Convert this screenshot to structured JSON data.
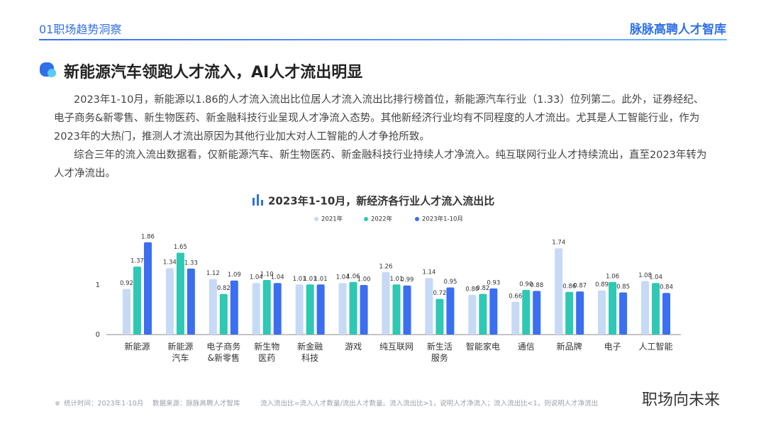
{
  "header": {
    "left": "01职场趋势洞察",
    "right": "脉脉高聘人才智库"
  },
  "section_title": "新能源汽车领跑人才流入，AI人才流出明显",
  "paragraphs": [
    "2023年1-10月，新能源以1.86的人才流入流出比位居人才流入流出比排行榜首位，新能源汽车行业（1.33）位列第二。此外，证券经纪、 电子商务&新零售、新生物医药、新金融科技行业呈现人才净流入态势。其他新经济行业均有不同程度的人才流出。尤其是人工智能行业，作为2023年的大热门，推测人才流出原因为其他行业加大对人工智能的人才争抢所致。",
    "综合三年的流入流出数据看，仅新能源汽车、新生物医药、新金融科技行业持续人才净流入。纯互联网行业人才持续流出，直至2023年转为人才净流出。"
  ],
  "chart_data": {
    "type": "bar",
    "title": "2023年1-10月，新经济各行业人才流入流出比",
    "categories": [
      "新能源",
      "新能源\n汽车",
      "电子商务\n&新零售",
      "新生物\n医药",
      "新金融\n科技",
      "游戏",
      "纯互联网",
      "新生活\n服务",
      "智能家电",
      "通信",
      "新品牌",
      "电子",
      "人工智能"
    ],
    "series": [
      {
        "name": "2021年",
        "color": "#c6daf6",
        "values": [
          0.92,
          1.34,
          1.12,
          1.04,
          1.01,
          1.04,
          1.26,
          1.14,
          0.8,
          0.66,
          1.74,
          0.89,
          1.08
        ],
        "value_labels": [
          "0.92",
          "1.34",
          "1.12",
          "1.04",
          "1.01",
          "1.04",
          "1.26",
          "1.14",
          "0.80",
          "0.66",
          "1.74",
          "0.89",
          "1.08"
        ]
      },
      {
        "name": "2022年",
        "color": "#2ec8b4",
        "values": [
          1.37,
          1.65,
          0.82,
          1.1,
          1.01,
          1.06,
          1.01,
          0.72,
          0.82,
          0.9,
          0.86,
          1.06,
          1.04
        ],
        "value_labels": [
          "1.37",
          "1.65",
          "0.82",
          "1.10",
          "1.01",
          "1.06",
          "1.01",
          "0.72",
          "0.82",
          "0.90",
          "0.86",
          "1.06",
          "1.04"
        ]
      },
      {
        "name": "2023年1-10月",
        "color": "#3b6ef0",
        "values": [
          1.86,
          1.33,
          1.09,
          1.04,
          1.01,
          1.0,
          0.99,
          0.95,
          0.93,
          0.88,
          0.87,
          0.85,
          0.84
        ],
        "value_labels": [
          "1.86",
          "1.33",
          "1.09",
          "1.04",
          "1.01",
          "1.00",
          "0.99",
          "0.95",
          "0.93",
          "0.88",
          "0.87",
          "0.85",
          "0.84"
        ]
      }
    ],
    "ylim": [
      0,
      2
    ],
    "yticks": [
      0,
      1
    ],
    "grid": false,
    "legend": "top"
  },
  "footer": {
    "time": "统计时间：2023年1-10月",
    "source": "数据来源：脉脉高聘人才智库",
    "note": "流入流出比=流入人才数量/流出人才数量。流入流出比>1，说明人才净流入；流入流出比<1，则说明人才净流出"
  },
  "watermark": "职场向未来"
}
